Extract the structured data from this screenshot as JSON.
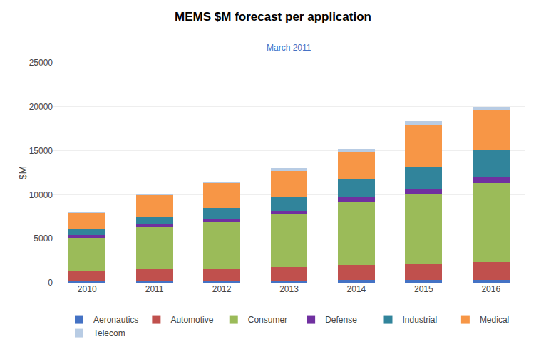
{
  "chart_data": {
    "type": "bar",
    "title": "MEMS $M forecast per application",
    "subtitle": "March 2011",
    "ylabel": "$M",
    "categories": [
      "2010",
      "2011",
      "2012",
      "2013",
      "2014",
      "2015",
      "2016"
    ],
    "stacked": true,
    "series": [
      {
        "name": "Aeronautics",
        "color": "#4472c4",
        "values": [
          200,
          200,
          200,
          250,
          300,
          300,
          350
        ]
      },
      {
        "name": "Automotive",
        "color": "#c0504d",
        "values": [
          1100,
          1300,
          1400,
          1500,
          1700,
          1800,
          2000
        ]
      },
      {
        "name": "Consumer",
        "color": "#9bbb59",
        "values": [
          3800,
          4800,
          5300,
          6000,
          7200,
          8000,
          9000
        ]
      },
      {
        "name": "Defense",
        "color": "#7030a0",
        "values": [
          300,
          350,
          400,
          450,
          500,
          600,
          700
        ]
      },
      {
        "name": "Industrial",
        "color": "#31849b",
        "values": [
          700,
          900,
          1200,
          1500,
          2000,
          2500,
          3000
        ]
      },
      {
        "name": "Medical",
        "color": "#f79646",
        "values": [
          1800,
          2400,
          2800,
          3000,
          3200,
          4800,
          4500
        ]
      },
      {
        "name": "Telecom",
        "color": "#b8cce4",
        "values": [
          200,
          200,
          200,
          300,
          300,
          400,
          400
        ]
      }
    ],
    "ylim": [
      0,
      25000
    ],
    "yticks": [
      0,
      5000,
      10000,
      15000,
      20000,
      25000
    ],
    "grid": true,
    "legend": "bottom"
  }
}
